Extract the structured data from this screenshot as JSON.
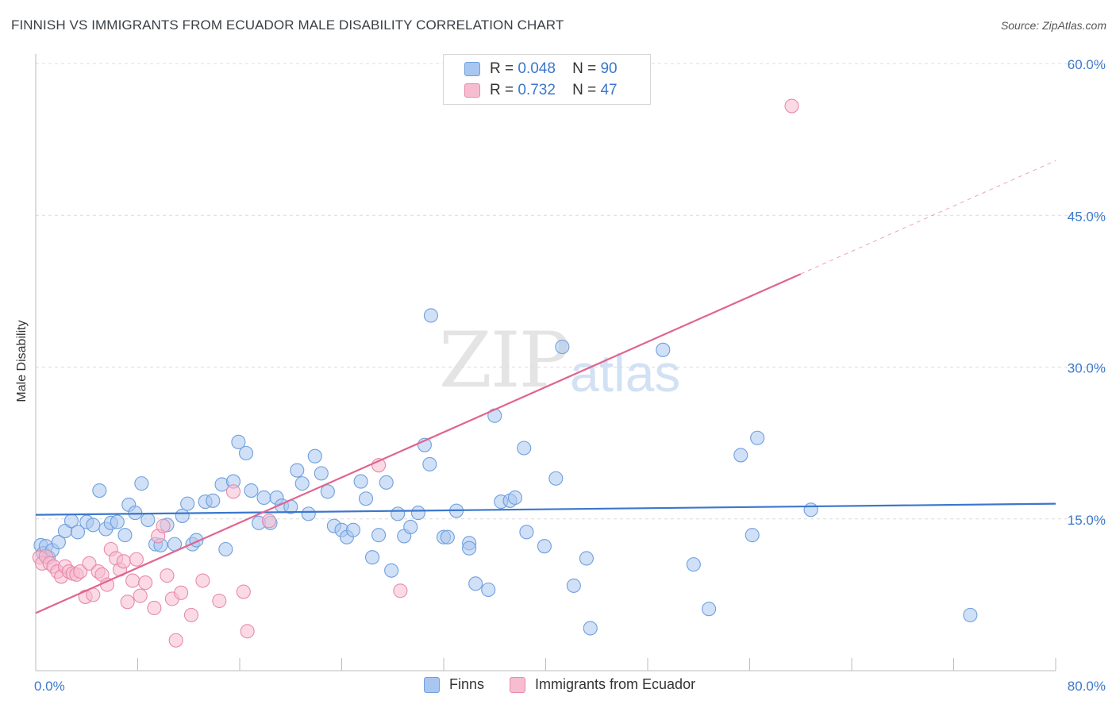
{
  "header": {
    "title": "FINNISH VS IMMIGRANTS FROM ECUADOR MALE DISABILITY CORRELATION CHART",
    "source": "Source: ZipAtlas.com"
  },
  "watermark": {
    "zip": "ZIP",
    "atlas": "atlas"
  },
  "legend": {
    "r_label": "R =",
    "n_label": "N =",
    "rows": [
      {
        "r": "0.048",
        "n": "90",
        "color": "#a9c6f0",
        "border": "#6f9fde"
      },
      {
        "r": "0.732",
        "n": "47",
        "color": "#f7bcd0",
        "border": "#e88aab"
      }
    ]
  },
  "bottom_legend": [
    {
      "label": "Finns",
      "color": "#a9c6f0",
      "border": "#6f9fde"
    },
    {
      "label": "Immigrants from Ecuador",
      "color": "#f7bcd0",
      "border": "#e88aab"
    }
  ],
  "chart_data": {
    "type": "scatter",
    "ylabel": "Male Disability",
    "xlim": [
      0,
      80
    ],
    "ylim": [
      0,
      60
    ],
    "x_tick_labels": [
      "0.0%",
      "80.0%"
    ],
    "y_ticks": [
      15,
      30,
      45,
      60
    ],
    "y_tick_labels": [
      "15.0%",
      "30.0%",
      "45.0%",
      "60.0%"
    ],
    "grid": true,
    "colors": {
      "finns": "#3b77cc",
      "ecuador": "#e0648f",
      "finns_fill": "#a9c6f0",
      "ecuador_fill": "#f7bcd0",
      "axis_text": "#3b77cc"
    },
    "series": [
      {
        "name": "Finns",
        "points": [
          [
            0.4,
            12.4
          ],
          [
            0.6,
            11.6
          ],
          [
            0.8,
            12.3
          ],
          [
            1.0,
            11.2
          ],
          [
            1.3,
            11.9
          ],
          [
            1.8,
            12.7
          ],
          [
            2.3,
            13.8
          ],
          [
            2.8,
            14.8
          ],
          [
            3.3,
            13.7
          ],
          [
            4.0,
            14.7
          ],
          [
            4.5,
            14.4
          ],
          [
            5.0,
            17.8
          ],
          [
            5.5,
            14.0
          ],
          [
            5.9,
            14.6
          ],
          [
            6.4,
            14.7
          ],
          [
            7.0,
            13.4
          ],
          [
            7.3,
            16.4
          ],
          [
            7.8,
            15.6
          ],
          [
            8.3,
            18.5
          ],
          [
            8.8,
            14.9
          ],
          [
            9.4,
            12.5
          ],
          [
            9.8,
            12.4
          ],
          [
            10.3,
            14.4
          ],
          [
            10.9,
            12.5
          ],
          [
            11.5,
            15.3
          ],
          [
            11.9,
            16.5
          ],
          [
            12.3,
            12.5
          ],
          [
            12.6,
            12.9
          ],
          [
            13.3,
            16.7
          ],
          [
            13.9,
            16.8
          ],
          [
            14.6,
            18.4
          ],
          [
            14.9,
            12.0
          ],
          [
            15.5,
            18.7
          ],
          [
            15.9,
            22.6
          ],
          [
            16.5,
            21.5
          ],
          [
            16.9,
            17.8
          ],
          [
            17.5,
            14.6
          ],
          [
            17.9,
            17.1
          ],
          [
            18.4,
            14.6
          ],
          [
            18.9,
            17.1
          ],
          [
            19.3,
            16.3
          ],
          [
            20.0,
            16.2
          ],
          [
            20.5,
            19.8
          ],
          [
            20.9,
            18.5
          ],
          [
            21.4,
            15.5
          ],
          [
            21.9,
            21.2
          ],
          [
            22.4,
            19.5
          ],
          [
            22.9,
            17.7
          ],
          [
            23.4,
            14.3
          ],
          [
            24.0,
            13.9
          ],
          [
            24.4,
            13.2
          ],
          [
            24.9,
            13.9
          ],
          [
            25.5,
            18.7
          ],
          [
            25.9,
            17.0
          ],
          [
            26.4,
            11.2
          ],
          [
            26.9,
            13.4
          ],
          [
            27.5,
            18.6
          ],
          [
            27.9,
            9.9
          ],
          [
            28.4,
            15.5
          ],
          [
            28.9,
            13.3
          ],
          [
            29.4,
            14.2
          ],
          [
            30.0,
            15.6
          ],
          [
            30.5,
            22.3
          ],
          [
            30.9,
            20.4
          ],
          [
            31.0,
            35.1
          ],
          [
            32.0,
            13.2
          ],
          [
            32.3,
            13.2
          ],
          [
            33.0,
            15.8
          ],
          [
            34.0,
            12.6
          ],
          [
            34.0,
            12.1
          ],
          [
            34.5,
            8.6
          ],
          [
            35.5,
            8.0
          ],
          [
            36.0,
            25.2
          ],
          [
            36.5,
            16.7
          ],
          [
            37.2,
            16.8
          ],
          [
            37.6,
            17.1
          ],
          [
            38.3,
            22.0
          ],
          [
            38.5,
            13.7
          ],
          [
            39.9,
            12.3
          ],
          [
            40.8,
            19.0
          ],
          [
            41.3,
            32.0
          ],
          [
            42.2,
            8.4
          ],
          [
            43.2,
            11.1
          ],
          [
            43.5,
            4.2
          ],
          [
            49.2,
            31.7
          ],
          [
            51.6,
            10.5
          ],
          [
            52.8,
            6.1
          ],
          [
            55.3,
            21.3
          ],
          [
            56.2,
            13.4
          ],
          [
            56.6,
            23.0
          ],
          [
            60.8,
            15.9
          ],
          [
            73.3,
            5.5
          ]
        ]
      },
      {
        "name": "Immigrants from Ecuador",
        "points": [
          [
            0.3,
            11.2
          ],
          [
            0.5,
            10.6
          ],
          [
            0.8,
            11.3
          ],
          [
            1.1,
            10.6
          ],
          [
            1.4,
            10.3
          ],
          [
            1.7,
            9.8
          ],
          [
            2.0,
            9.3
          ],
          [
            2.3,
            10.3
          ],
          [
            2.6,
            9.8
          ],
          [
            2.9,
            9.6
          ],
          [
            3.2,
            9.5
          ],
          [
            3.5,
            9.8
          ],
          [
            3.9,
            7.3
          ],
          [
            4.2,
            10.6
          ],
          [
            4.5,
            7.5
          ],
          [
            4.9,
            9.8
          ],
          [
            5.2,
            9.5
          ],
          [
            5.6,
            8.5
          ],
          [
            5.9,
            12.0
          ],
          [
            6.3,
            11.1
          ],
          [
            6.6,
            10.0
          ],
          [
            6.9,
            10.8
          ],
          [
            7.2,
            6.8
          ],
          [
            7.6,
            8.9
          ],
          [
            7.9,
            11.0
          ],
          [
            8.2,
            7.4
          ],
          [
            8.6,
            8.7
          ],
          [
            9.3,
            6.2
          ],
          [
            9.6,
            13.3
          ],
          [
            10.0,
            14.3
          ],
          [
            10.3,
            9.4
          ],
          [
            10.7,
            7.1
          ],
          [
            11.0,
            3.0
          ],
          [
            11.4,
            7.7
          ],
          [
            12.2,
            5.5
          ],
          [
            13.1,
            8.9
          ],
          [
            14.4,
            6.9
          ],
          [
            15.5,
            17.7
          ],
          [
            16.3,
            7.8
          ],
          [
            16.6,
            3.9
          ],
          [
            18.3,
            14.8
          ],
          [
            26.9,
            20.3
          ],
          [
            28.6,
            7.9
          ],
          [
            59.3,
            55.8
          ]
        ]
      }
    ],
    "trend_lines": [
      {
        "series": "Finns",
        "x": [
          0,
          80
        ],
        "y": [
          15.4,
          16.5
        ]
      },
      {
        "series": "Immigrants from Ecuador",
        "x": [
          0,
          60
        ],
        "y": [
          5.7,
          39.2
        ],
        "dashed_extension_to": [
          80,
          50.4
        ]
      }
    ]
  }
}
